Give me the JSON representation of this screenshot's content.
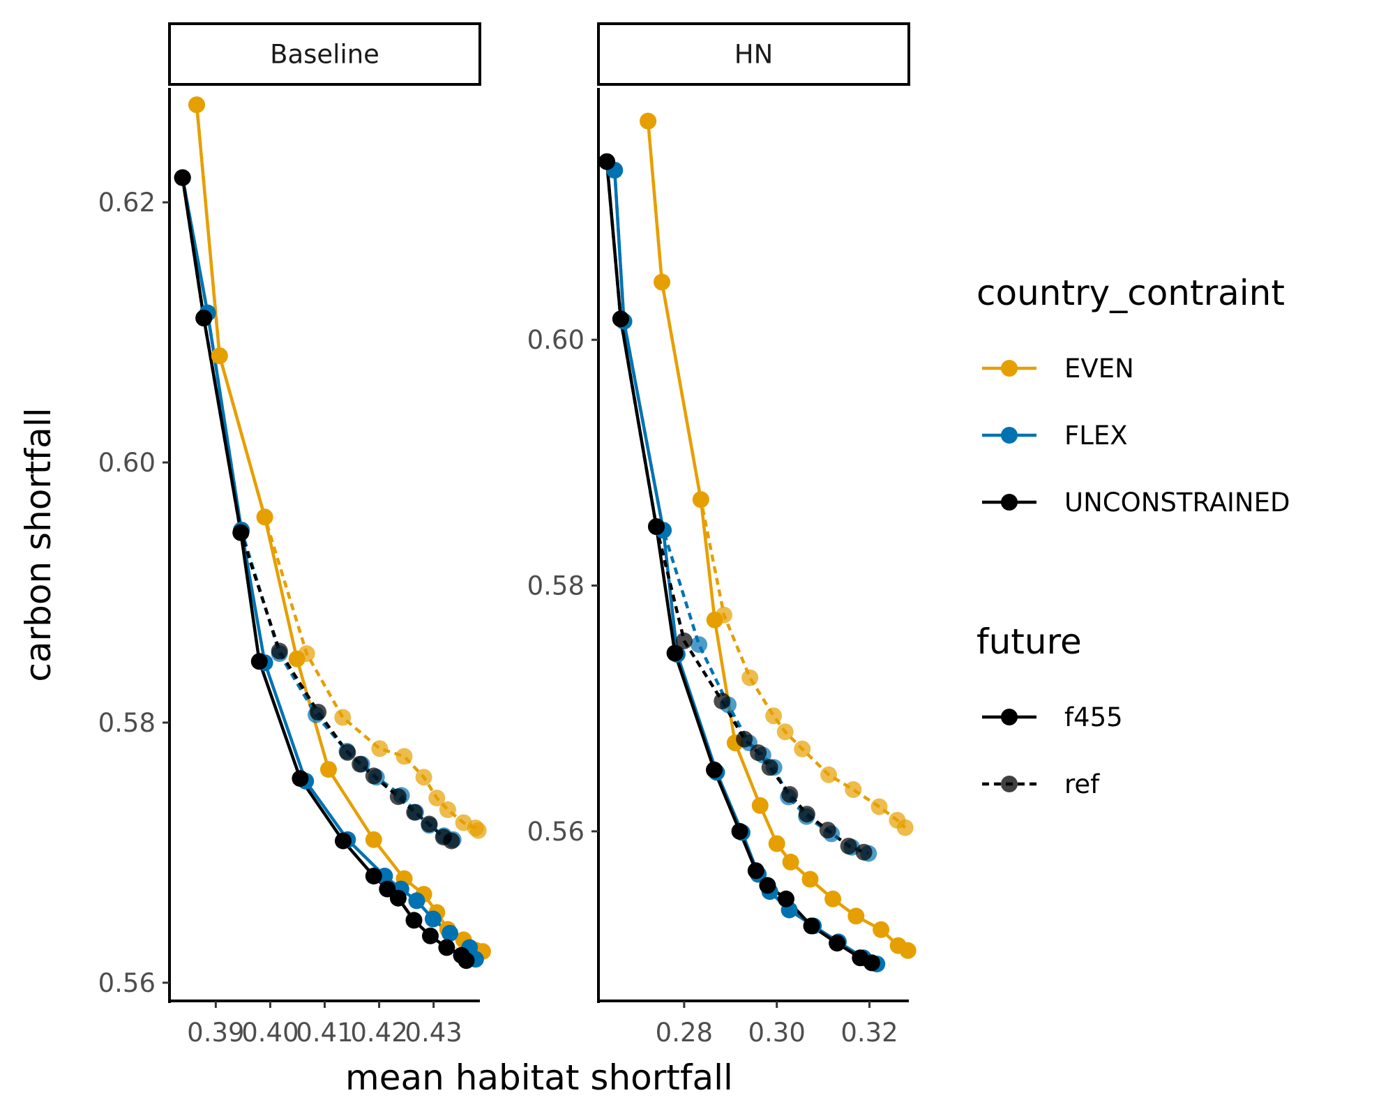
{
  "chart_data": {
    "type": "line",
    "xlabel": "mean habitat shortfall",
    "ylabel": "carbon shortfall",
    "legend": {
      "placement": "right",
      "color": {
        "title": "country_contraint",
        "entries": [
          {
            "label": "EVEN",
            "color": "#E69F00"
          },
          {
            "label": "FLEX",
            "color": "#0072B2"
          },
          {
            "label": "UNCONSTRAINED",
            "color": "#000000"
          }
        ]
      },
      "linetype": {
        "title": "future",
        "entries": [
          {
            "label": "f455",
            "dash": "solid"
          },
          {
            "label": "ref",
            "dash": "dotted"
          }
        ]
      }
    },
    "panels": [
      {
        "name": "Baseline",
        "xlim": [
          0.3815,
          0.4385
        ],
        "ylim": [
          0.5586,
          0.6288
        ],
        "x_ticks": [
          0.39,
          0.4,
          0.41,
          0.42,
          0.43
        ],
        "x_tick_labels": [
          "0.39",
          "0.40",
          "0.41",
          "0.42",
          "0.43"
        ],
        "y_ticks": [
          0.56,
          0.58,
          0.6,
          0.62
        ],
        "y_tick_labels": [
          "0.56",
          "0.58",
          "0.60",
          "0.62"
        ],
        "series": [
          {
            "constraint": "EVEN",
            "future": "ref",
            "x": [
              0.3865,
              0.3907,
              0.399,
              0.4067,
              0.4133,
              0.4201,
              0.4246,
              0.4282,
              0.4306,
              0.4326,
              0.4355,
              0.4377,
              0.4382
            ],
            "y": [
              0.6275,
              0.6082,
              0.5958,
              0.5853,
              0.5804,
              0.578,
              0.5774,
              0.5758,
              0.5742,
              0.5733,
              0.5723,
              0.5719,
              0.5717
            ]
          },
          {
            "constraint": "EVEN",
            "future": "f455",
            "x": [
              0.3865,
              0.3907,
              0.399,
              0.4049,
              0.4107,
              0.419,
              0.4246,
              0.4282,
              0.4306,
              0.4326,
              0.4355,
              0.4377,
              0.439
            ],
            "y": [
              0.6275,
              0.6082,
              0.5958,
              0.5849,
              0.5764,
              0.571,
              0.568,
              0.5668,
              0.5654,
              0.5641,
              0.5633,
              0.5625,
              0.5624
            ]
          },
          {
            "constraint": "FLEX",
            "future": "ref",
            "x": [
              0.3839,
              0.3885,
              0.3947,
              0.4017,
              0.4084,
              0.4141,
              0.4168,
              0.4195,
              0.4241,
              0.4267,
              0.4292,
              0.4319,
              0.4336
            ],
            "y": [
              0.6219,
              0.6115,
              0.5948,
              0.5853,
              0.5806,
              0.5778,
              0.5768,
              0.5758,
              0.5744,
              0.5731,
              0.5721,
              0.5713,
              0.571
            ]
          },
          {
            "constraint": "FLEX",
            "future": "f455",
            "x": [
              0.3839,
              0.3885,
              0.3947,
              0.399,
              0.4065,
              0.4142,
              0.421,
              0.424,
              0.4269,
              0.4299,
              0.433,
              0.4366,
              0.4377
            ],
            "y": [
              0.6219,
              0.6115,
              0.5948,
              0.5846,
              0.5755,
              0.571,
              0.5682,
              0.5672,
              0.5663,
              0.5649,
              0.5638,
              0.5627,
              0.5618
            ]
          },
          {
            "constraint": "UNCONSTRAINED",
            "future": "ref",
            "x": [
              0.3839,
              0.3878,
              0.3946,
              0.4017,
              0.4088,
              0.4142,
              0.4165,
              0.419,
              0.4235,
              0.4265,
              0.4292,
              0.4318,
              0.4333
            ],
            "y": [
              0.6219,
              0.6111,
              0.5946,
              0.5855,
              0.5808,
              0.5777,
              0.5768,
              0.5759,
              0.5743,
              0.5731,
              0.5722,
              0.5712,
              0.5709
            ]
          },
          {
            "constraint": "UNCONSTRAINED",
            "future": "f455",
            "x": [
              0.3839,
              0.3878,
              0.3946,
              0.398,
              0.4055,
              0.4134,
              0.419,
              0.4215,
              0.4235,
              0.4264,
              0.4294,
              0.4324,
              0.4351,
              0.436
            ],
            "y": [
              0.6219,
              0.6111,
              0.5946,
              0.5847,
              0.5757,
              0.5709,
              0.5682,
              0.5672,
              0.5665,
              0.5648,
              0.5636,
              0.5627,
              0.5621,
              0.5617
            ]
          }
        ]
      },
      {
        "name": "HN",
        "xlim": [
          0.2615,
          0.3285
        ],
        "ylim": [
          0.5462,
          0.6205
        ],
        "x_ticks": [
          0.28,
          0.3,
          0.32
        ],
        "x_tick_labels": [
          "0.28",
          "0.30",
          "0.32"
        ],
        "y_ticks": [
          0.56,
          0.58,
          0.6
        ],
        "y_tick_labels": [
          "0.56",
          "0.58",
          "0.60"
        ],
        "series": [
          {
            "constraint": "EVEN",
            "future": "ref",
            "x": [
              0.2722,
              0.2752,
              0.2836,
              0.2886,
              0.2942,
              0.2993,
              0.3018,
              0.3055,
              0.3112,
              0.3165,
              0.3221,
              0.326,
              0.3277
            ],
            "y": [
              0.6178,
              0.6047,
              0.587,
              0.5776,
              0.5725,
              0.5694,
              0.5681,
              0.5667,
              0.5646,
              0.5634,
              0.562,
              0.5609,
              0.5603
            ]
          },
          {
            "constraint": "EVEN",
            "future": "f455",
            "x": [
              0.2722,
              0.2752,
              0.2836,
              0.2866,
              0.291,
              0.2964,
              0.3,
              0.303,
              0.3072,
              0.3121,
              0.3171,
              0.3225,
              0.3262,
              0.3283
            ],
            "y": [
              0.6178,
              0.6047,
              0.587,
              0.5772,
              0.5672,
              0.5621,
              0.559,
              0.5575,
              0.5561,
              0.5545,
              0.5531,
              0.552,
              0.5507,
              0.5503
            ]
          },
          {
            "constraint": "FLEX",
            "future": "ref",
            "x": [
              0.265,
              0.267,
              0.2755,
              0.2832,
              0.2895,
              0.294,
              0.297,
              0.2994,
              0.3025,
              0.3064,
              0.3118,
              0.3162,
              0.3198
            ],
            "y": [
              0.6138,
              0.6015,
              0.5845,
              0.5752,
              0.5703,
              0.5672,
              0.5662,
              0.5652,
              0.5628,
              0.5612,
              0.5598,
              0.5587,
              0.5582
            ]
          },
          {
            "constraint": "FLEX",
            "future": "f455",
            "x": [
              0.265,
              0.267,
              0.2755,
              0.2785,
              0.287,
              0.2925,
              0.296,
              0.2985,
              0.3027,
              0.3079,
              0.3133,
              0.3187,
              0.3216
            ],
            "y": [
              0.6138,
              0.6015,
              0.5845,
              0.5744,
              0.5648,
              0.5599,
              0.5565,
              0.5551,
              0.5536,
              0.5523,
              0.551,
              0.5497,
              0.5492
            ]
          },
          {
            "constraint": "UNCONSTRAINED",
            "future": "ref",
            "x": [
              0.2633,
              0.2663,
              0.274,
              0.28,
              0.2882,
              0.293,
              0.296,
              0.2985,
              0.3028,
              0.3065,
              0.311,
              0.3155,
              0.3188
            ],
            "y": [
              0.6145,
              0.6017,
              0.5848,
              0.5755,
              0.5706,
              0.5675,
              0.5664,
              0.5652,
              0.563,
              0.5614,
              0.5601,
              0.5588,
              0.5583
            ]
          },
          {
            "constraint": "UNCONSTRAINED",
            "future": "f455",
            "x": [
              0.2633,
              0.2663,
              0.274,
              0.278,
              0.2865,
              0.292,
              0.2955,
              0.298,
              0.302,
              0.3075,
              0.313,
              0.318,
              0.3205
            ],
            "y": [
              0.6145,
              0.6017,
              0.5848,
              0.5745,
              0.565,
              0.56,
              0.5568,
              0.5556,
              0.5545,
              0.5523,
              0.5509,
              0.5497,
              0.5493
            ]
          }
        ]
      }
    ]
  }
}
